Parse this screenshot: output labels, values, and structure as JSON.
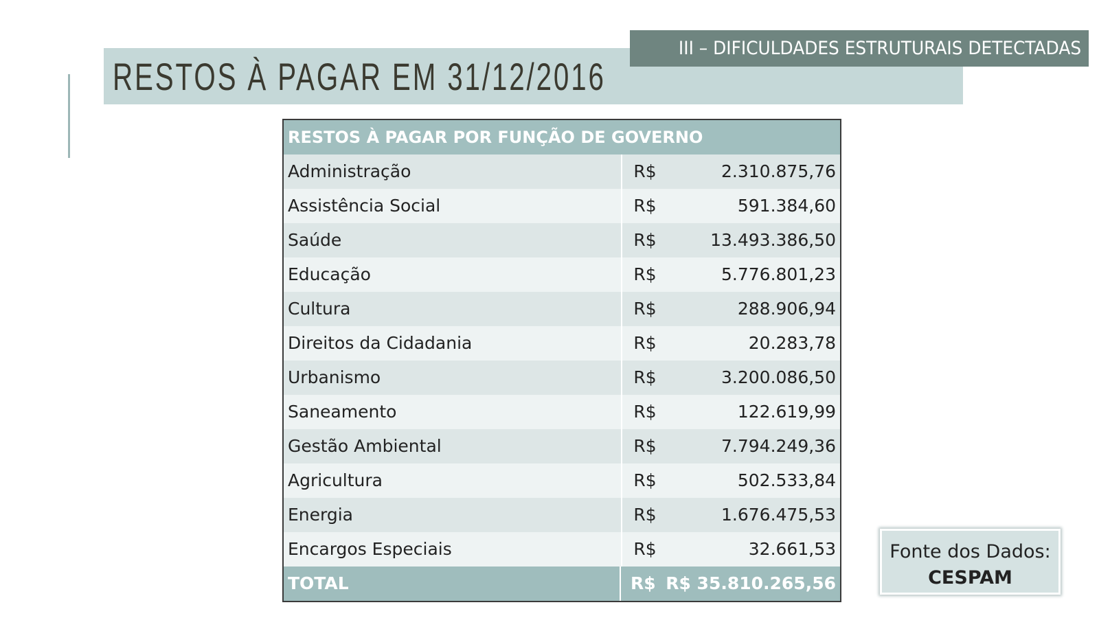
{
  "header": {
    "title": "RESTOS À PAGAR EM 31/12/2016",
    "badge": "III – DIFICULDADES ESTRUTURAIS DETECTADAS"
  },
  "table": {
    "title": "RESTOS À PAGAR POR FUNÇÃO DE GOVERNO",
    "rows": [
      [
        "Administração",
        "R$",
        "2.310.875,76"
      ],
      [
        "Assistência Social",
        "R$",
        "591.384,60"
      ],
      [
        "Saúde",
        "R$",
        "13.493.386,50"
      ],
      [
        "Educação",
        "R$",
        "5.776.801,23"
      ],
      [
        "Cultura",
        "R$",
        "288.906,94"
      ],
      [
        "Direitos da Cidadania",
        "R$",
        "20.283,78"
      ],
      [
        "Urbanismo",
        "R$",
        "3.200.086,50"
      ],
      [
        "Saneamento",
        "R$",
        "122.619,99"
      ],
      [
        "Gestão Ambiental",
        "R$",
        "7.794.249,36"
      ],
      [
        "Agricultura",
        "R$",
        "502.533,84"
      ],
      [
        "Energia",
        "R$",
        "1.676.475,53"
      ],
      [
        "Encargos Especiais",
        "R$",
        "32.661,53"
      ]
    ],
    "total": [
      "TOTAL",
      "R$",
      "R$ 35.810.265,56"
    ]
  },
  "source": {
    "label": "Fonte dos Dados:",
    "name": "CESPAM"
  }
}
